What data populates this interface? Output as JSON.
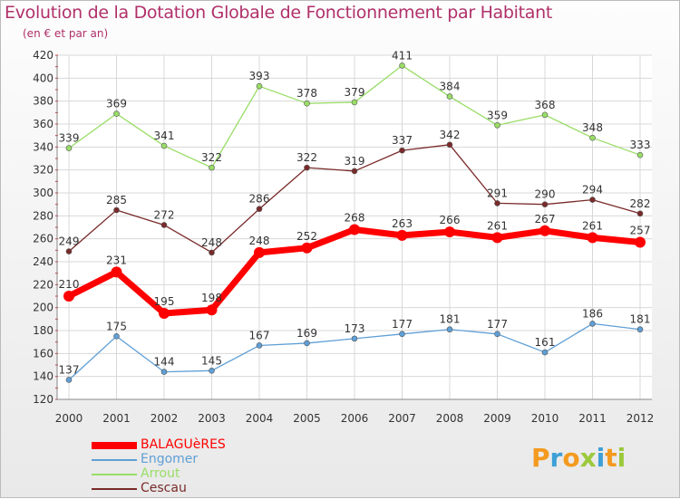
{
  "header": {
    "title": "Evolution de la Dotation Globale de Fonctionnement par Habitant",
    "subtitle": "(en € et par an)"
  },
  "logo": {
    "text": "Proxiti"
  },
  "chart_data": {
    "type": "line",
    "title": "Evolution de la Dotation Globale de Fonctionnement par Habitant",
    "subtitle": "(en € et par an)",
    "xlabel": "",
    "ylabel": "",
    "ylim": [
      120,
      420
    ],
    "yticks": [
      120,
      140,
      160,
      180,
      200,
      220,
      240,
      260,
      280,
      300,
      320,
      340,
      360,
      380,
      400,
      420
    ],
    "grid": true,
    "legend_position": "bottom-left",
    "x": [
      "2000",
      "2001",
      "2002",
      "2003",
      "2004",
      "2005",
      "2006",
      "2007",
      "2008",
      "2009",
      "2010",
      "2011",
      "2012"
    ],
    "series": [
      {
        "name": "BALAGUèRES",
        "color": "#ff0000",
        "values": [
          210,
          231,
          195,
          198,
          248,
          252,
          268,
          263,
          266,
          261,
          267,
          261,
          257
        ]
      },
      {
        "name": "Engomer",
        "color": "#5f9fd6",
        "values": [
          137,
          175,
          144,
          145,
          167,
          169,
          173,
          177,
          181,
          177,
          161,
          186,
          181
        ]
      },
      {
        "name": "Arrout",
        "color": "#99dd66",
        "values": [
          339,
          369,
          341,
          322,
          393,
          378,
          379,
          411,
          384,
          359,
          368,
          348,
          333
        ]
      },
      {
        "name": "Cescau",
        "color": "#7a2a2a",
        "values": [
          249,
          285,
          272,
          248,
          286,
          322,
          319,
          337,
          342,
          291,
          290,
          294,
          282
        ]
      }
    ]
  }
}
